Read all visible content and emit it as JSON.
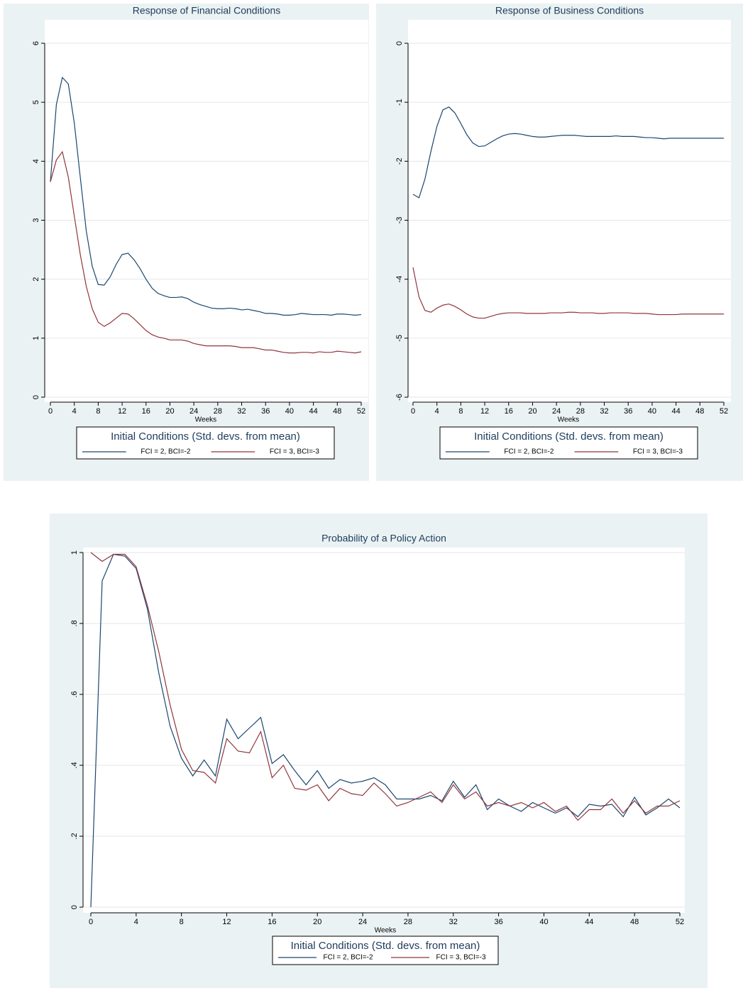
{
  "chart_data": [
    {
      "type": "line",
      "title": "Response of Financial Conditions",
      "xlabel": "Weeks",
      "x": [
        0,
        1,
        2,
        3,
        4,
        5,
        6,
        7,
        8,
        9,
        10,
        11,
        12,
        13,
        14,
        15,
        16,
        17,
        18,
        19,
        20,
        21,
        22,
        23,
        24,
        25,
        26,
        27,
        28,
        29,
        30,
        31,
        32,
        33,
        34,
        35,
        36,
        37,
        38,
        39,
        40,
        41,
        42,
        43,
        44,
        45,
        46,
        47,
        48,
        49,
        50,
        51,
        52
      ],
      "xlim": [
        0,
        52
      ],
      "xticks": [
        0,
        4,
        8,
        12,
        16,
        20,
        24,
        28,
        32,
        36,
        40,
        44,
        48,
        52
      ],
      "ylim": [
        0,
        6
      ],
      "yticks": [
        0,
        1,
        2,
        3,
        4,
        5,
        6
      ],
      "grid": true,
      "legend_title": "Initial Conditions (Std. devs. from mean)",
      "series": [
        {
          "name": "FCI = 2, BCI=-2",
          "color": "#1a476f",
          "values": [
            3.65,
            4.96,
            5.42,
            5.31,
            4.65,
            3.73,
            2.82,
            2.22,
            1.91,
            1.9,
            2.04,
            2.25,
            2.42,
            2.44,
            2.33,
            2.18,
            2.0,
            1.85,
            1.76,
            1.72,
            1.69,
            1.69,
            1.7,
            1.67,
            1.61,
            1.57,
            1.54,
            1.51,
            1.5,
            1.5,
            1.51,
            1.5,
            1.48,
            1.49,
            1.47,
            1.45,
            1.42,
            1.42,
            1.41,
            1.39,
            1.39,
            1.4,
            1.42,
            1.41,
            1.4,
            1.4,
            1.4,
            1.39,
            1.41,
            1.41,
            1.4,
            1.39,
            1.4
          ]
        },
        {
          "name": "FCI = 3, BCI=-3",
          "color": "#90353b",
          "values": [
            3.65,
            4.02,
            4.16,
            3.73,
            3.07,
            2.42,
            1.88,
            1.5,
            1.27,
            1.2,
            1.26,
            1.34,
            1.42,
            1.41,
            1.33,
            1.23,
            1.13,
            1.06,
            1.02,
            1.0,
            0.97,
            0.97,
            0.97,
            0.95,
            0.91,
            0.89,
            0.87,
            0.87,
            0.87,
            0.87,
            0.87,
            0.86,
            0.84,
            0.84,
            0.84,
            0.82,
            0.8,
            0.8,
            0.78,
            0.76,
            0.75,
            0.75,
            0.76,
            0.76,
            0.75,
            0.77,
            0.76,
            0.76,
            0.78,
            0.77,
            0.76,
            0.75,
            0.77
          ]
        }
      ]
    },
    {
      "type": "line",
      "title": "Response of Business Conditions",
      "xlabel": "Weeks",
      "x": [
        0,
        1,
        2,
        3,
        4,
        5,
        6,
        7,
        8,
        9,
        10,
        11,
        12,
        13,
        14,
        15,
        16,
        17,
        18,
        19,
        20,
        21,
        22,
        23,
        24,
        25,
        26,
        27,
        28,
        29,
        30,
        31,
        32,
        33,
        34,
        35,
        36,
        37,
        38,
        39,
        40,
        41,
        42,
        43,
        44,
        45,
        46,
        47,
        48,
        49,
        50,
        51,
        52
      ],
      "xlim": [
        0,
        52
      ],
      "xticks": [
        0,
        4,
        8,
        12,
        16,
        20,
        24,
        28,
        32,
        36,
        40,
        44,
        48,
        52
      ],
      "ylim": [
        -6,
        0
      ],
      "yticks": [
        -6,
        -5,
        -4,
        -3,
        -2,
        -1,
        0
      ],
      "grid": true,
      "legend_title": "Initial Conditions (Std. devs. from mean)",
      "series": [
        {
          "name": "FCI = 2, BCI=-2",
          "color": "#1a476f",
          "values": [
            -2.56,
            -2.62,
            -2.3,
            -1.83,
            -1.41,
            -1.13,
            -1.08,
            -1.18,
            -1.36,
            -1.55,
            -1.69,
            -1.75,
            -1.74,
            -1.68,
            -1.62,
            -1.57,
            -1.54,
            -1.53,
            -1.54,
            -1.56,
            -1.58,
            -1.59,
            -1.59,
            -1.58,
            -1.57,
            -1.56,
            -1.56,
            -1.56,
            -1.57,
            -1.58,
            -1.58,
            -1.58,
            -1.58,
            -1.58,
            -1.57,
            -1.58,
            -1.58,
            -1.58,
            -1.59,
            -1.6,
            -1.6,
            -1.61,
            -1.62,
            -1.61,
            -1.61,
            -1.61,
            -1.61,
            -1.61,
            -1.61,
            -1.61,
            -1.61,
            -1.61,
            -1.61
          ]
        },
        {
          "name": "FCI = 3, BCI=-3",
          "color": "#90353b",
          "values": [
            -3.8,
            -4.3,
            -4.53,
            -4.56,
            -4.49,
            -4.44,
            -4.42,
            -4.46,
            -4.52,
            -4.59,
            -4.64,
            -4.66,
            -4.66,
            -4.63,
            -4.6,
            -4.58,
            -4.57,
            -4.57,
            -4.57,
            -4.58,
            -4.58,
            -4.58,
            -4.58,
            -4.57,
            -4.57,
            -4.57,
            -4.56,
            -4.56,
            -4.57,
            -4.57,
            -4.57,
            -4.58,
            -4.58,
            -4.57,
            -4.57,
            -4.57,
            -4.57,
            -4.58,
            -4.58,
            -4.58,
            -4.59,
            -4.6,
            -4.6,
            -4.6,
            -4.6,
            -4.59,
            -4.59,
            -4.59,
            -4.59,
            -4.59,
            -4.59,
            -4.59,
            -4.59
          ]
        }
      ]
    },
    {
      "type": "line",
      "title": "Probability of a Policy Action",
      "xlabel": "Weeks",
      "x": [
        0,
        1,
        2,
        3,
        4,
        5,
        6,
        7,
        8,
        9,
        10,
        11,
        12,
        13,
        14,
        15,
        16,
        17,
        18,
        19,
        20,
        21,
        22,
        23,
        24,
        25,
        26,
        27,
        28,
        29,
        30,
        31,
        32,
        33,
        34,
        35,
        36,
        37,
        38,
        39,
        40,
        41,
        42,
        43,
        44,
        45,
        46,
        47,
        48,
        49,
        50,
        51,
        52
      ],
      "xlim": [
        0,
        52
      ],
      "xticks": [
        0,
        4,
        8,
        12,
        16,
        20,
        24,
        28,
        32,
        36,
        40,
        44,
        48,
        52
      ],
      "ylim": [
        0,
        1
      ],
      "yticks": [
        0,
        {
          "value": 0.2,
          "label": ".2"
        },
        {
          "value": 0.4,
          "label": ".4"
        },
        {
          "value": 0.6,
          "label": ".6"
        },
        {
          "value": 0.8,
          "label": ".8"
        },
        1
      ],
      "grid": true,
      "legend_title": "Initial Conditions (Std. devs. from mean)",
      "series": [
        {
          "name": "FCI = 2, BCI=-2",
          "color": "#1a476f",
          "values": [
            0,
            0.92,
            0.995,
            0.99,
            0.955,
            0.84,
            0.66,
            0.51,
            0.42,
            0.37,
            0.415,
            0.37,
            0.53,
            0.475,
            0.505,
            0.535,
            0.405,
            0.43,
            0.385,
            0.345,
            0.385,
            0.335,
            0.36,
            0.35,
            0.355,
            0.365,
            0.345,
            0.305,
            0.305,
            0.305,
            0.315,
            0.3,
            0.355,
            0.31,
            0.345,
            0.275,
            0.305,
            0.285,
            0.27,
            0.295,
            0.28,
            0.265,
            0.28,
            0.255,
            0.29,
            0.285,
            0.29,
            0.255,
            0.31,
            0.26,
            0.28,
            0.305,
            0.28
          ]
        },
        {
          "name": "FCI = 3, BCI=-3",
          "color": "#90353b",
          "values": [
            1.0,
            0.975,
            0.995,
            0.995,
            0.96,
            0.85,
            0.72,
            0.57,
            0.445,
            0.385,
            0.38,
            0.35,
            0.475,
            0.44,
            0.435,
            0.495,
            0.365,
            0.4,
            0.335,
            0.33,
            0.345,
            0.3,
            0.335,
            0.32,
            0.315,
            0.35,
            0.32,
            0.285,
            0.295,
            0.31,
            0.325,
            0.295,
            0.345,
            0.305,
            0.325,
            0.285,
            0.295,
            0.285,
            0.295,
            0.28,
            0.295,
            0.27,
            0.285,
            0.245,
            0.275,
            0.275,
            0.305,
            0.265,
            0.3,
            0.265,
            0.285,
            0.285,
            0.3
          ]
        }
      ]
    }
  ]
}
